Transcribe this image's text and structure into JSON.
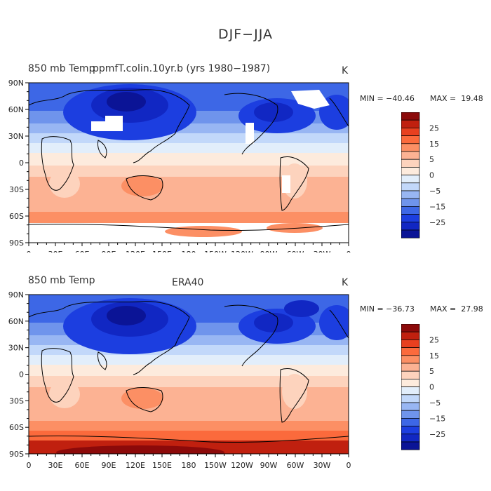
{
  "figure_title": "DJF−JJA",
  "x_tick_labels": [
    "0",
    "30E",
    "60E",
    "90E",
    "120E",
    "150E",
    "180",
    "150W",
    "120W",
    "90W",
    "60W",
    "30W",
    "0"
  ],
  "y_tick_labels": [
    "90N",
    "60N",
    "30N",
    "0",
    "30S",
    "60S",
    "90S"
  ],
  "colorbar_tick_labels": [
    "25",
    "15",
    "5",
    "0",
    "−5",
    "−15",
    "−25"
  ],
  "colorbar_colors": [
    "#8c0a0a",
    "#c0200f",
    "#e8401f",
    "#fb6a3c",
    "#fc8f64",
    "#fcb293",
    "#fdd3bd",
    "#fdebdd",
    "#e2eefb",
    "#c2d8fa",
    "#98b6f3",
    "#6f94ec",
    "#3d67e6",
    "#1c3ee0",
    "#1127c3",
    "#0b1496"
  ],
  "colors": {
    "missing": "#ffffff",
    "coastline": "#000000"
  },
  "panels": [
    {
      "left_title": "850 mb Temp",
      "center_title": "ppmfT.colin.10yr.b (yrs 1980−1987)",
      "units": "K",
      "min_label": "MIN = −40.46",
      "max_label": "MAX =  19.48",
      "min": -40.46,
      "max": 19.48
    },
    {
      "left_title": "850 mb Temp",
      "center_title": "ERA40",
      "units": "K",
      "min_label": "MIN = −36.73",
      "max_label": "MAX =  27.98",
      "min": -36.73,
      "max": 27.98
    }
  ]
}
